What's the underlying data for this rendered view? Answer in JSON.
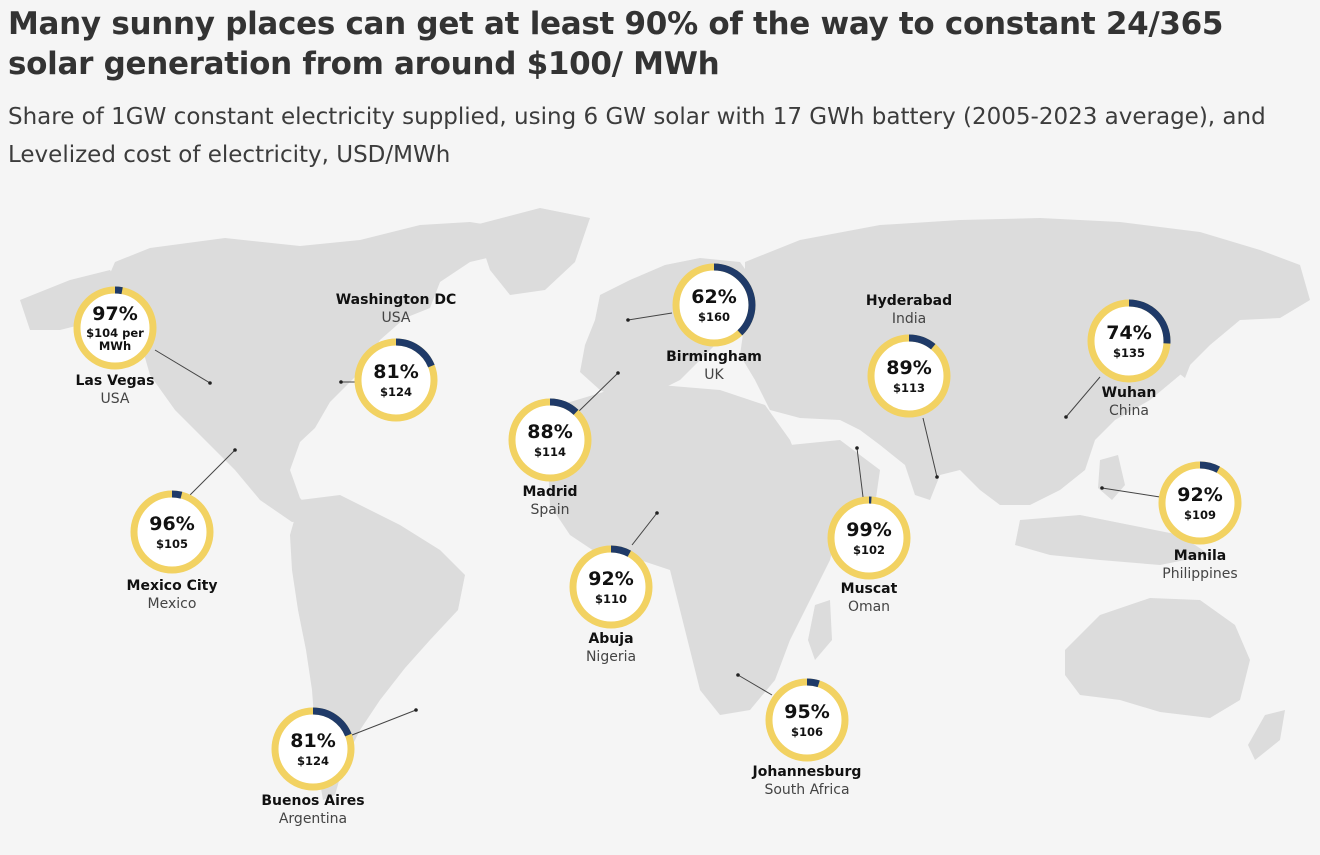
{
  "title": "Many sunny places can get at least 90% of the way to constant 24/365 solar generation from around $100/ MWh",
  "subtitle": "Share of 1GW constant electricity supplied, using 6 GW solar with 17 GWh battery (2005-2023 average), and Levelized cost of electricity, USD/MWh",
  "colors": {
    "ring": "#f2d262",
    "remainder": "#1f3a68",
    "land": "#dcdcdc",
    "background": "#f5f5f5"
  },
  "locations": [
    {
      "city": "Las Vegas",
      "country": "USA",
      "share_pct": 97,
      "share_label": "97%",
      "cost_lines": [
        "$104 per",
        "MWh"
      ]
    },
    {
      "city": "Washington DC",
      "country": "USA",
      "share_pct": 81,
      "share_label": "81%",
      "cost_lines": [
        "$124"
      ]
    },
    {
      "city": "Mexico City",
      "country": "Mexico",
      "share_pct": 96,
      "share_label": "96%",
      "cost_lines": [
        "$105"
      ]
    },
    {
      "city": "Buenos Aires",
      "country": "Argentina",
      "share_pct": 81,
      "share_label": "81%",
      "cost_lines": [
        "$124"
      ]
    },
    {
      "city": "Madrid",
      "country": "Spain",
      "share_pct": 88,
      "share_label": "88%",
      "cost_lines": [
        "$114"
      ]
    },
    {
      "city": "Birmingham",
      "country": "UK",
      "share_pct": 62,
      "share_label": "62%",
      "cost_lines": [
        "$160"
      ]
    },
    {
      "city": "Abuja",
      "country": "Nigeria",
      "share_pct": 92,
      "share_label": "92%",
      "cost_lines": [
        "$110"
      ]
    },
    {
      "city": "Johannesburg",
      "country": "South Africa",
      "share_pct": 95,
      "share_label": "95%",
      "cost_lines": [
        "$106"
      ]
    },
    {
      "city": "Muscat",
      "country": "Oman",
      "share_pct": 99,
      "share_label": "99%",
      "cost_lines": [
        "$102"
      ]
    },
    {
      "city": "Hyderabad",
      "country": "India",
      "share_pct": 89,
      "share_label": "89%",
      "cost_lines": [
        "$113"
      ]
    },
    {
      "city": "Wuhan",
      "country": "China",
      "share_pct": 74,
      "share_label": "74%",
      "cost_lines": [
        "$135"
      ]
    },
    {
      "city": "Manila",
      "country": "Philippines",
      "share_pct": 92,
      "share_label": "92%",
      "cost_lines": [
        "$109"
      ]
    }
  ]
}
